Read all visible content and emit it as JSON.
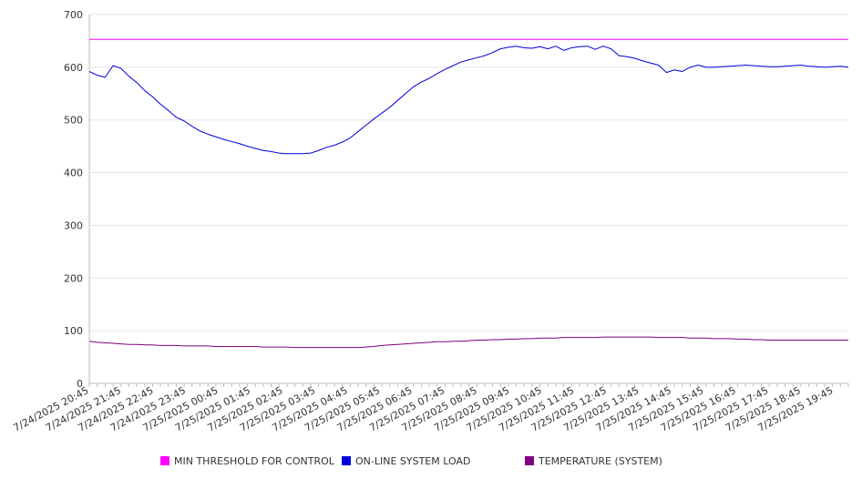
{
  "chart_data": {
    "type": "line",
    "title": "",
    "xlabel": "",
    "ylabel": "",
    "ylim": [
      0,
      700
    ],
    "yticks": [
      0,
      100,
      200,
      300,
      400,
      500,
      600,
      700
    ],
    "grid": true,
    "legend_position": "bottom",
    "xticks": [
      "7/24/2025 20:45",
      "7/24/2025 21:45",
      "7/24/2025 22:45",
      "7/24/2025 23:45",
      "7/25/2025 00:45",
      "7/25/2025 01:45",
      "7/25/2025 02:45",
      "7/25/2025 03:45",
      "7/25/2025 04:45",
      "7/25/2025 05:45",
      "7/25/2025 06:45",
      "7/25/2025 07:45",
      "7/25/2025 08:45",
      "7/25/2025 09:45",
      "7/25/2025 10:45",
      "7/25/2025 11:45",
      "7/25/2025 12:45",
      "7/25/2025 13:45",
      "7/25/2025 14:45",
      "7/25/2025 15:45",
      "7/25/2025 16:45",
      "7/25/2025 17:45",
      "7/25/2025 18:45",
      "7/25/2025 19:45"
    ],
    "x": [
      "20:45",
      "21:00",
      "21:15",
      "21:30",
      "21:45",
      "22:00",
      "22:15",
      "22:30",
      "22:45",
      "23:00",
      "23:15",
      "23:30",
      "23:45",
      "00:00",
      "00:15",
      "00:30",
      "00:45",
      "01:00",
      "01:15",
      "01:30",
      "01:45",
      "02:00",
      "02:15",
      "02:30",
      "02:45",
      "03:00",
      "03:15",
      "03:30",
      "03:45",
      "04:00",
      "04:15",
      "04:30",
      "04:45",
      "05:00",
      "05:15",
      "05:30",
      "05:45",
      "06:00",
      "06:15",
      "06:30",
      "06:45",
      "07:00",
      "07:15",
      "07:30",
      "07:45",
      "08:00",
      "08:15",
      "08:30",
      "08:45",
      "09:00",
      "09:15",
      "09:30",
      "09:45",
      "10:00",
      "10:15",
      "10:30",
      "10:45",
      "11:00",
      "11:15",
      "11:30",
      "11:45",
      "12:00",
      "12:15",
      "12:30",
      "12:45",
      "13:00",
      "13:15",
      "13:30",
      "13:45",
      "14:00",
      "14:15",
      "14:30",
      "14:45",
      "15:00",
      "15:15",
      "15:30",
      "15:45",
      "16:00",
      "16:15",
      "16:30",
      "16:45",
      "17:00",
      "17:15",
      "17:30",
      "17:45",
      "18:00",
      "18:15",
      "18:30",
      "18:45",
      "19:00",
      "19:15",
      "19:30",
      "19:45",
      "20:00",
      "20:15",
      "20:30",
      "20:45"
    ],
    "series": [
      {
        "name": "MIN THRESHOLD FOR CONTROL",
        "color": "#ff00ff",
        "values": [
          653,
          653,
          653,
          653,
          653,
          653,
          653,
          653,
          653,
          653,
          653,
          653,
          653,
          653,
          653,
          653,
          653,
          653,
          653,
          653,
          653,
          653,
          653,
          653,
          653,
          653,
          653,
          653,
          653,
          653,
          653,
          653,
          653,
          653,
          653,
          653,
          653,
          653,
          653,
          653,
          653,
          653,
          653,
          653,
          653,
          653,
          653,
          653,
          653,
          653,
          653,
          653,
          653,
          653,
          653,
          653,
          653,
          653,
          653,
          653,
          653,
          653,
          653,
          653,
          653,
          653,
          653,
          653,
          653,
          653,
          653,
          653,
          653,
          653,
          653,
          653,
          653,
          653,
          653,
          653,
          653,
          653,
          653,
          653,
          653,
          653,
          653,
          653,
          653,
          653,
          653,
          653,
          653,
          653,
          653,
          653,
          653
        ]
      },
      {
        "name": "ON-LINE SYSTEM LOAD",
        "color": "#0000dd",
        "values": [
          592,
          585,
          581,
          603,
          598,
          583,
          571,
          556,
          544,
          530,
          518,
          505,
          498,
          488,
          479,
          473,
          468,
          463,
          459,
          455,
          450,
          446,
          442,
          440,
          437,
          436,
          436,
          436,
          437,
          442,
          448,
          452,
          458,
          466,
          478,
          490,
          502,
          513,
          524,
          537,
          550,
          563,
          572,
          579,
          588,
          596,
          603,
          610,
          614,
          618,
          622,
          628,
          635,
          638,
          640,
          637,
          636,
          639,
          635,
          640,
          632,
          637,
          639,
          640,
          634,
          640,
          635,
          622,
          620,
          617,
          612,
          608,
          604,
          590,
          595,
          592,
          600,
          604,
          600,
          600,
          601,
          602,
          603,
          604,
          603,
          602,
          601,
          601,
          602,
          603,
          604,
          602,
          601,
          600,
          601,
          602,
          600
        ]
      },
      {
        "name": "TEMPERATURE (SYSTEM)",
        "color": "#800080",
        "values": [
          80,
          78,
          77,
          76,
          75,
          74,
          74,
          73,
          73,
          72,
          72,
          72,
          71,
          71,
          71,
          71,
          70,
          70,
          70,
          70,
          70,
          70,
          69,
          69,
          69,
          69,
          68,
          68,
          68,
          68,
          68,
          68,
          68,
          68,
          68,
          69,
          70,
          72,
          73,
          74,
          75,
          76,
          77,
          78,
          79,
          79,
          80,
          80,
          81,
          82,
          82,
          83,
          83,
          84,
          84,
          85,
          85,
          86,
          86,
          86,
          87,
          87,
          87,
          87,
          87,
          88,
          88,
          88,
          88,
          88,
          88,
          88,
          87,
          87,
          87,
          87,
          86,
          86,
          86,
          85,
          85,
          85,
          84,
          84,
          83,
          83,
          82,
          82,
          82,
          82,
          82,
          82,
          82,
          82,
          82,
          82,
          82
        ]
      }
    ]
  }
}
